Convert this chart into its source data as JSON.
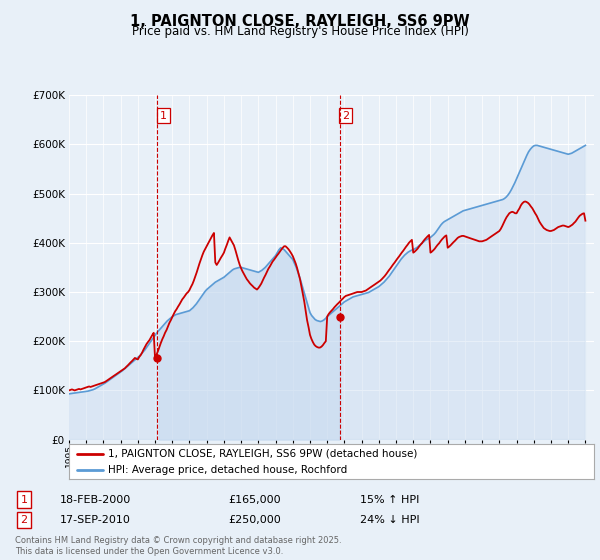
{
  "title": "1, PAIGNTON CLOSE, RAYLEIGH, SS6 9PW",
  "subtitle": "Price paid vs. HM Land Registry's House Price Index (HPI)",
  "bg_color": "#e8f0f8",
  "plot_bg_color": "#e8f0f8",
  "grid_color": "#ffffff",
  "legend_label_red": "1, PAIGNTON CLOSE, RAYLEIGH, SS6 9PW (detached house)",
  "legend_label_blue": "HPI: Average price, detached house, Rochford",
  "sale1_date": "18-FEB-2000",
  "sale1_price": 165000,
  "sale1_pct": "15% ↑ HPI",
  "sale2_date": "17-SEP-2010",
  "sale2_price": 250000,
  "sale2_pct": "24% ↓ HPI",
  "footnote": "Contains HM Land Registry data © Crown copyright and database right 2025.\nThis data is licensed under the Open Government Licence v3.0.",
  "red_color": "#cc0000",
  "blue_color": "#5b9bd5",
  "fill_color": "#c5d9ef",
  "vline_color": "#cc0000",
  "ylim_max": 700000,
  "sale1_x": 2000.13,
  "sale2_x": 2010.72,
  "marker1_price": 165000,
  "marker2_price": 250000,
  "xmin": 1995,
  "xmax": 2025.5,
  "hpi_x": [
    1995.0,
    1995.1,
    1995.2,
    1995.3,
    1995.4,
    1995.5,
    1995.6,
    1995.7,
    1995.8,
    1995.9,
    1996.0,
    1996.1,
    1996.2,
    1996.3,
    1996.4,
    1996.5,
    1996.6,
    1996.7,
    1996.8,
    1996.9,
    1997.0,
    1997.1,
    1997.2,
    1997.3,
    1997.4,
    1997.5,
    1997.6,
    1997.7,
    1997.8,
    1997.9,
    1998.0,
    1998.1,
    1998.2,
    1998.3,
    1998.4,
    1998.5,
    1998.6,
    1998.7,
    1998.8,
    1998.9,
    1999.0,
    1999.1,
    1999.2,
    1999.3,
    1999.4,
    1999.5,
    1999.6,
    1999.7,
    1999.8,
    1999.9,
    2000.0,
    2000.1,
    2000.2,
    2000.3,
    2000.4,
    2000.5,
    2000.6,
    2000.7,
    2000.8,
    2000.9,
    2001.0,
    2001.1,
    2001.2,
    2001.3,
    2001.4,
    2001.5,
    2001.6,
    2001.7,
    2001.8,
    2001.9,
    2002.0,
    2002.1,
    2002.2,
    2002.3,
    2002.4,
    2002.5,
    2002.6,
    2002.7,
    2002.8,
    2002.9,
    2003.0,
    2003.1,
    2003.2,
    2003.3,
    2003.4,
    2003.5,
    2003.6,
    2003.7,
    2003.8,
    2003.9,
    2004.0,
    2004.1,
    2004.2,
    2004.3,
    2004.4,
    2004.5,
    2004.6,
    2004.7,
    2004.8,
    2004.9,
    2005.0,
    2005.1,
    2005.2,
    2005.3,
    2005.4,
    2005.5,
    2005.6,
    2005.7,
    2005.8,
    2005.9,
    2006.0,
    2006.1,
    2006.2,
    2006.3,
    2006.4,
    2006.5,
    2006.6,
    2006.7,
    2006.8,
    2006.9,
    2007.0,
    2007.1,
    2007.2,
    2007.3,
    2007.4,
    2007.5,
    2007.6,
    2007.7,
    2007.8,
    2007.9,
    2008.0,
    2008.1,
    2008.2,
    2008.3,
    2008.4,
    2008.5,
    2008.6,
    2008.7,
    2008.8,
    2008.9,
    2009.0,
    2009.1,
    2009.2,
    2009.3,
    2009.4,
    2009.5,
    2009.6,
    2009.7,
    2009.8,
    2009.9,
    2010.0,
    2010.1,
    2010.2,
    2010.3,
    2010.4,
    2010.5,
    2010.6,
    2010.7,
    2010.8,
    2010.9,
    2011.0,
    2011.1,
    2011.2,
    2011.3,
    2011.4,
    2011.5,
    2011.6,
    2011.7,
    2011.8,
    2011.9,
    2012.0,
    2012.1,
    2012.2,
    2012.3,
    2012.4,
    2012.5,
    2012.6,
    2012.7,
    2012.8,
    2012.9,
    2013.0,
    2013.1,
    2013.2,
    2013.3,
    2013.4,
    2013.5,
    2013.6,
    2013.7,
    2013.8,
    2013.9,
    2014.0,
    2014.1,
    2014.2,
    2014.3,
    2014.4,
    2014.5,
    2014.6,
    2014.7,
    2014.8,
    2014.9,
    2015.0,
    2015.1,
    2015.2,
    2015.3,
    2015.4,
    2015.5,
    2015.6,
    2015.7,
    2015.8,
    2015.9,
    2016.0,
    2016.1,
    2016.2,
    2016.3,
    2016.4,
    2016.5,
    2016.6,
    2016.7,
    2016.8,
    2016.9,
    2017.0,
    2017.1,
    2017.2,
    2017.3,
    2017.4,
    2017.5,
    2017.6,
    2017.7,
    2017.8,
    2017.9,
    2018.0,
    2018.1,
    2018.2,
    2018.3,
    2018.4,
    2018.5,
    2018.6,
    2018.7,
    2018.8,
    2018.9,
    2019.0,
    2019.1,
    2019.2,
    2019.3,
    2019.4,
    2019.5,
    2019.6,
    2019.7,
    2019.8,
    2019.9,
    2020.0,
    2020.1,
    2020.2,
    2020.3,
    2020.4,
    2020.5,
    2020.6,
    2020.7,
    2020.8,
    2020.9,
    2021.0,
    2021.1,
    2021.2,
    2021.3,
    2021.4,
    2021.5,
    2021.6,
    2021.7,
    2021.8,
    2021.9,
    2022.0,
    2022.1,
    2022.2,
    2022.3,
    2022.4,
    2022.5,
    2022.6,
    2022.7,
    2022.8,
    2022.9,
    2023.0,
    2023.1,
    2023.2,
    2023.3,
    2023.4,
    2023.5,
    2023.6,
    2023.7,
    2023.8,
    2023.9,
    2024.0,
    2024.1,
    2024.2,
    2024.3,
    2024.4,
    2024.5,
    2024.6,
    2024.7,
    2024.8,
    2024.9,
    2025.0
  ],
  "hpi_y": [
    93000,
    93500,
    94000,
    94500,
    95000,
    95500,
    96000,
    96500,
    97000,
    97500,
    98000,
    98500,
    99500,
    100500,
    101500,
    103000,
    105000,
    107000,
    109000,
    111000,
    113000,
    115000,
    117500,
    120000,
    122500,
    125000,
    127500,
    130000,
    132500,
    135000,
    137500,
    140000,
    143000,
    146000,
    149000,
    152000,
    155000,
    158000,
    161000,
    164000,
    167000,
    170000,
    174000,
    178000,
    182000,
    187000,
    192000,
    197000,
    202000,
    207000,
    212000,
    217000,
    221000,
    225000,
    229000,
    233000,
    237000,
    241000,
    244000,
    247000,
    250000,
    252000,
    254000,
    255000,
    256000,
    257000,
    258000,
    259000,
    260000,
    261000,
    262000,
    265000,
    268000,
    272000,
    276000,
    281000,
    286000,
    291000,
    296000,
    301000,
    305000,
    308000,
    311000,
    314000,
    317000,
    320000,
    322000,
    324000,
    326000,
    328000,
    330000,
    333000,
    336000,
    339000,
    342000,
    345000,
    347000,
    348000,
    349000,
    350000,
    350000,
    349000,
    348000,
    347000,
    346000,
    345000,
    344000,
    343000,
    342000,
    341000,
    340000,
    342000,
    344000,
    347000,
    350000,
    354000,
    358000,
    362000,
    366000,
    370000,
    374000,
    380000,
    386000,
    390000,
    388000,
    386000,
    382000,
    378000,
    374000,
    370000,
    366000,
    358000,
    350000,
    340000,
    330000,
    318000,
    306000,
    294000,
    282000,
    270000,
    258000,
    252000,
    248000,
    244000,
    242000,
    241000,
    240000,
    241000,
    243000,
    246000,
    250000,
    253000,
    256000,
    259000,
    262000,
    265000,
    268000,
    271000,
    274000,
    277000,
    280000,
    282000,
    284000,
    286000,
    288000,
    290000,
    291000,
    292000,
    293000,
    294000,
    295000,
    296000,
    297000,
    298000,
    299000,
    301000,
    303000,
    305000,
    307000,
    309000,
    311000,
    314000,
    317000,
    320000,
    324000,
    328000,
    332000,
    337000,
    342000,
    347000,
    352000,
    357000,
    362000,
    367000,
    371000,
    375000,
    378000,
    381000,
    383000,
    385000,
    386000,
    388000,
    390000,
    393000,
    396000,
    399000,
    402000,
    405000,
    407000,
    409000,
    411000,
    414000,
    417000,
    421000,
    426000,
    431000,
    436000,
    440000,
    443000,
    445000,
    447000,
    449000,
    451000,
    453000,
    455000,
    457000,
    459000,
    461000,
    463000,
    465000,
    466000,
    467000,
    468000,
    469000,
    470000,
    471000,
    472000,
    473000,
    474000,
    475000,
    476000,
    477000,
    478000,
    479000,
    480000,
    481000,
    482000,
    483000,
    484000,
    485000,
    486000,
    487000,
    488000,
    490000,
    493000,
    497000,
    502000,
    508000,
    515000,
    522000,
    530000,
    538000,
    546000,
    554000,
    562000,
    570000,
    578000,
    585000,
    590000,
    594000,
    597000,
    598000,
    598000,
    597000,
    596000,
    595000,
    594000,
    593000,
    592000,
    591000,
    590000,
    589000,
    588000,
    587000,
    586000,
    585000,
    584000,
    583000,
    582000,
    581000,
    580000,
    581000,
    582000,
    584000,
    586000,
    588000,
    590000,
    592000,
    594000,
    596000,
    598000
  ],
  "price_x": [
    1995.0,
    1995.08,
    1995.17,
    1995.25,
    1995.33,
    1995.42,
    1995.5,
    1995.58,
    1995.67,
    1995.75,
    1995.83,
    1995.92,
    1996.0,
    1996.08,
    1996.17,
    1996.25,
    1996.33,
    1996.42,
    1996.5,
    1996.58,
    1996.67,
    1996.75,
    1996.83,
    1996.92,
    1997.0,
    1997.08,
    1997.17,
    1997.25,
    1997.33,
    1997.42,
    1997.5,
    1997.58,
    1997.67,
    1997.75,
    1997.83,
    1997.92,
    1998.0,
    1998.08,
    1998.17,
    1998.25,
    1998.33,
    1998.42,
    1998.5,
    1998.58,
    1998.67,
    1998.75,
    1998.83,
    1998.92,
    1999.0,
    1999.08,
    1999.17,
    1999.25,
    1999.33,
    1999.42,
    1999.5,
    1999.58,
    1999.67,
    1999.75,
    1999.83,
    1999.92,
    2000.0,
    2000.08,
    2000.17,
    2000.25,
    2000.33,
    2000.42,
    2000.5,
    2000.58,
    2000.67,
    2000.75,
    2000.83,
    2000.92,
    2001.0,
    2001.08,
    2001.17,
    2001.25,
    2001.33,
    2001.42,
    2001.5,
    2001.58,
    2001.67,
    2001.75,
    2001.83,
    2001.92,
    2002.0,
    2002.08,
    2002.17,
    2002.25,
    2002.33,
    2002.42,
    2002.5,
    2002.58,
    2002.67,
    2002.75,
    2002.83,
    2002.92,
    2003.0,
    2003.08,
    2003.17,
    2003.25,
    2003.33,
    2003.42,
    2003.5,
    2003.58,
    2003.67,
    2003.75,
    2003.83,
    2003.92,
    2004.0,
    2004.08,
    2004.17,
    2004.25,
    2004.33,
    2004.42,
    2004.5,
    2004.58,
    2004.67,
    2004.75,
    2004.83,
    2004.92,
    2005.0,
    2005.08,
    2005.17,
    2005.25,
    2005.33,
    2005.42,
    2005.5,
    2005.58,
    2005.67,
    2005.75,
    2005.83,
    2005.92,
    2006.0,
    2006.08,
    2006.17,
    2006.25,
    2006.33,
    2006.42,
    2006.5,
    2006.58,
    2006.67,
    2006.75,
    2006.83,
    2006.92,
    2007.0,
    2007.08,
    2007.17,
    2007.25,
    2007.33,
    2007.42,
    2007.5,
    2007.58,
    2007.67,
    2007.75,
    2007.83,
    2007.92,
    2008.0,
    2008.08,
    2008.17,
    2008.25,
    2008.33,
    2008.42,
    2008.5,
    2008.58,
    2008.67,
    2008.75,
    2008.83,
    2008.92,
    2009.0,
    2009.08,
    2009.17,
    2009.25,
    2009.33,
    2009.42,
    2009.5,
    2009.58,
    2009.67,
    2009.75,
    2009.83,
    2009.92,
    2010.0,
    2010.08,
    2010.17,
    2010.25,
    2010.33,
    2010.42,
    2010.5,
    2010.58,
    2010.67,
    2010.75,
    2010.83,
    2010.92,
    2011.0,
    2011.08,
    2011.17,
    2011.25,
    2011.33,
    2011.42,
    2011.5,
    2011.58,
    2011.67,
    2011.75,
    2011.83,
    2011.92,
    2012.0,
    2012.08,
    2012.17,
    2012.25,
    2012.33,
    2012.42,
    2012.5,
    2012.58,
    2012.67,
    2012.75,
    2012.83,
    2012.92,
    2013.0,
    2013.08,
    2013.17,
    2013.25,
    2013.33,
    2013.42,
    2013.5,
    2013.58,
    2013.67,
    2013.75,
    2013.83,
    2013.92,
    2014.0,
    2014.08,
    2014.17,
    2014.25,
    2014.33,
    2014.42,
    2014.5,
    2014.58,
    2014.67,
    2014.75,
    2014.83,
    2014.92,
    2015.0,
    2015.08,
    2015.17,
    2015.25,
    2015.33,
    2015.42,
    2015.5,
    2015.58,
    2015.67,
    2015.75,
    2015.83,
    2015.92,
    2016.0,
    2016.08,
    2016.17,
    2016.25,
    2016.33,
    2016.42,
    2016.5,
    2016.58,
    2016.67,
    2016.75,
    2016.83,
    2016.92,
    2017.0,
    2017.08,
    2017.17,
    2017.25,
    2017.33,
    2017.42,
    2017.5,
    2017.58,
    2017.67,
    2017.75,
    2017.83,
    2017.92,
    2018.0,
    2018.08,
    2018.17,
    2018.25,
    2018.33,
    2018.42,
    2018.5,
    2018.58,
    2018.67,
    2018.75,
    2018.83,
    2018.92,
    2019.0,
    2019.08,
    2019.17,
    2019.25,
    2019.33,
    2019.42,
    2019.5,
    2019.58,
    2019.67,
    2019.75,
    2019.83,
    2019.92,
    2020.0,
    2020.08,
    2020.17,
    2020.25,
    2020.33,
    2020.42,
    2020.5,
    2020.58,
    2020.67,
    2020.75,
    2020.83,
    2020.92,
    2021.0,
    2021.08,
    2021.17,
    2021.25,
    2021.33,
    2021.42,
    2021.5,
    2021.58,
    2021.67,
    2021.75,
    2021.83,
    2021.92,
    2022.0,
    2022.08,
    2022.17,
    2022.25,
    2022.33,
    2022.42,
    2022.5,
    2022.58,
    2022.67,
    2022.75,
    2022.83,
    2022.92,
    2023.0,
    2023.08,
    2023.17,
    2023.25,
    2023.33,
    2023.42,
    2023.5,
    2023.58,
    2023.67,
    2023.75,
    2023.83,
    2023.92,
    2024.0,
    2024.08,
    2024.17,
    2024.25,
    2024.33,
    2024.42,
    2024.5,
    2024.58,
    2024.67,
    2024.75,
    2024.83,
    2024.92,
    2025.0
  ],
  "price_y": [
    100000,
    101000,
    102000,
    101000,
    100000,
    101000,
    102000,
    103000,
    102000,
    103000,
    104000,
    105000,
    106000,
    107000,
    108000,
    107000,
    108000,
    109000,
    110000,
    111000,
    112000,
    113000,
    114000,
    115000,
    116000,
    117000,
    119000,
    121000,
    123000,
    125000,
    127000,
    129000,
    131000,
    133000,
    135000,
    137000,
    139000,
    141000,
    143000,
    145000,
    148000,
    151000,
    154000,
    157000,
    160000,
    163000,
    166000,
    164000,
    163000,
    168000,
    172000,
    177000,
    183000,
    189000,
    194000,
    198000,
    202000,
    207000,
    212000,
    217000,
    165000,
    172000,
    180000,
    188000,
    196000,
    204000,
    210000,
    217000,
    223000,
    230000,
    237000,
    243000,
    249000,
    255000,
    261000,
    265000,
    270000,
    275000,
    280000,
    285000,
    289000,
    293000,
    297000,
    300000,
    304000,
    310000,
    316000,
    323000,
    331000,
    340000,
    349000,
    358000,
    367000,
    375000,
    382000,
    388000,
    393000,
    399000,
    405000,
    410000,
    415000,
    420000,
    360000,
    355000,
    360000,
    365000,
    370000,
    375000,
    380000,
    388000,
    396000,
    404000,
    411000,
    405000,
    400000,
    395000,
    385000,
    375000,
    365000,
    355000,
    348000,
    342000,
    336000,
    331000,
    326000,
    322000,
    318000,
    315000,
    312000,
    309000,
    307000,
    305000,
    308000,
    312000,
    317000,
    323000,
    329000,
    335000,
    341000,
    347000,
    352000,
    357000,
    362000,
    366000,
    370000,
    374000,
    378000,
    382000,
    386000,
    390000,
    393000,
    393000,
    390000,
    387000,
    383000,
    378000,
    373000,
    366000,
    358000,
    349000,
    338000,
    326000,
    312000,
    297000,
    280000,
    262000,
    243000,
    228000,
    213000,
    205000,
    198000,
    193000,
    190000,
    188000,
    187000,
    187000,
    189000,
    192000,
    196000,
    200000,
    250000,
    255000,
    259000,
    262000,
    265000,
    269000,
    272000,
    275000,
    278000,
    281000,
    284000,
    287000,
    290000,
    292000,
    293000,
    294000,
    295000,
    296000,
    297000,
    298000,
    299000,
    300000,
    300000,
    300000,
    300000,
    301000,
    302000,
    303000,
    305000,
    307000,
    309000,
    311000,
    313000,
    315000,
    317000,
    319000,
    321000,
    323000,
    326000,
    329000,
    332000,
    336000,
    340000,
    344000,
    348000,
    352000,
    356000,
    360000,
    364000,
    368000,
    372000,
    376000,
    380000,
    384000,
    388000,
    392000,
    396000,
    400000,
    403000,
    406000,
    380000,
    382000,
    385000,
    388000,
    392000,
    396000,
    399000,
    403000,
    407000,
    410000,
    413000,
    416000,
    380000,
    382000,
    385000,
    388000,
    392000,
    396000,
    399000,
    403000,
    407000,
    410000,
    413000,
    415000,
    390000,
    392000,
    395000,
    398000,
    401000,
    404000,
    407000,
    410000,
    412000,
    413000,
    414000,
    414000,
    413000,
    412000,
    411000,
    410000,
    409000,
    408000,
    407000,
    406000,
    405000,
    404000,
    403000,
    403000,
    403000,
    404000,
    405000,
    406000,
    408000,
    410000,
    412000,
    414000,
    416000,
    418000,
    420000,
    422000,
    424000,
    428000,
    434000,
    440000,
    446000,
    452000,
    456000,
    460000,
    462000,
    463000,
    462000,
    460000,
    460000,
    465000,
    470000,
    476000,
    480000,
    483000,
    484000,
    483000,
    481000,
    478000,
    474000,
    470000,
    465000,
    460000,
    455000,
    449000,
    443000,
    438000,
    434000,
    430000,
    428000,
    426000,
    425000,
    424000,
    424000,
    425000,
    426000,
    428000,
    430000,
    432000,
    433000,
    434000,
    435000,
    435000,
    434000,
    433000,
    432000,
    433000,
    435000,
    437000,
    440000,
    443000,
    447000,
    451000,
    455000,
    457000,
    459000,
    460000,
    445000
  ]
}
